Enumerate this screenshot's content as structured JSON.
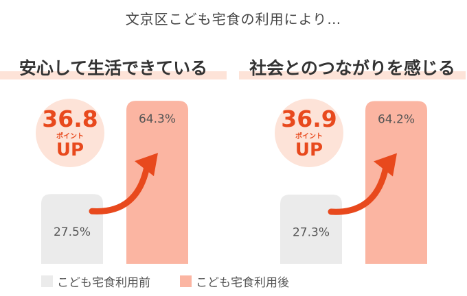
{
  "header": "文京区こども宅食の利用により…",
  "colors": {
    "before": "#ebebeb",
    "after": "#fbb5a2",
    "accent": "#e8491d",
    "highlight": "#fde3d8"
  },
  "panels": [
    {
      "title": "安心して生活できている",
      "badge": {
        "number": "36.8",
        "points": "ポイント",
        "up": "UP"
      }
    },
    {
      "title": "社会とのつながりを感じる",
      "badge": {
        "number": "36.9",
        "points": "ポイント",
        "up": "UP"
      }
    }
  ],
  "legend": {
    "before": "こども宅食利用前",
    "after": "こども宅食利用後"
  },
  "chart_data": [
    {
      "type": "bar",
      "title": "安心して生活できている",
      "categories": [
        "こども宅食利用前",
        "こども宅食利用後"
      ],
      "values": [
        27.5,
        64.3
      ],
      "labels": [
        "27.5%",
        "64.3%"
      ],
      "ylim": [
        0,
        70
      ],
      "annotation": "36.8 ポイント UP"
    },
    {
      "type": "bar",
      "title": "社会とのつながりを感じる",
      "categories": [
        "こども宅食利用前",
        "こども宅食利用後"
      ],
      "values": [
        27.3,
        64.2
      ],
      "labels": [
        "27.3%",
        "64.2%"
      ],
      "ylim": [
        0,
        70
      ],
      "annotation": "36.9 ポイント UP"
    }
  ]
}
